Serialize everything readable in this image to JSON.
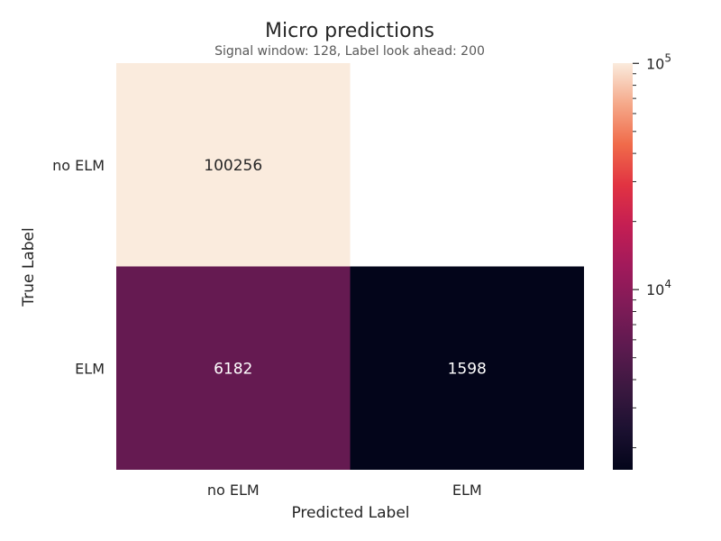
{
  "chart_data": {
    "type": "heatmap",
    "title": "Micro predictions",
    "subtitle": "Signal window: 128, Label look ahead: 200",
    "xlabel": "Predicted Label",
    "ylabel": "True Label",
    "x_categories": [
      "no ELM",
      "ELM"
    ],
    "y_categories": [
      "no ELM",
      "ELM"
    ],
    "matrix": [
      [
        100256,
        null
      ],
      [
        6182,
        1598
      ]
    ],
    "color_scale": "log",
    "colormap": "rocket",
    "colorbar": {
      "min": 1598,
      "max": 100256,
      "major_ticks": [
        {
          "value": 10000,
          "base": "10",
          "exp": "4"
        },
        {
          "value": 100000,
          "base": "10",
          "exp": "5"
        }
      ],
      "minor_ticks": [
        2000,
        3000,
        4000,
        5000,
        6000,
        7000,
        8000,
        9000,
        20000,
        30000,
        40000,
        50000,
        60000,
        70000,
        80000,
        90000
      ]
    }
  }
}
